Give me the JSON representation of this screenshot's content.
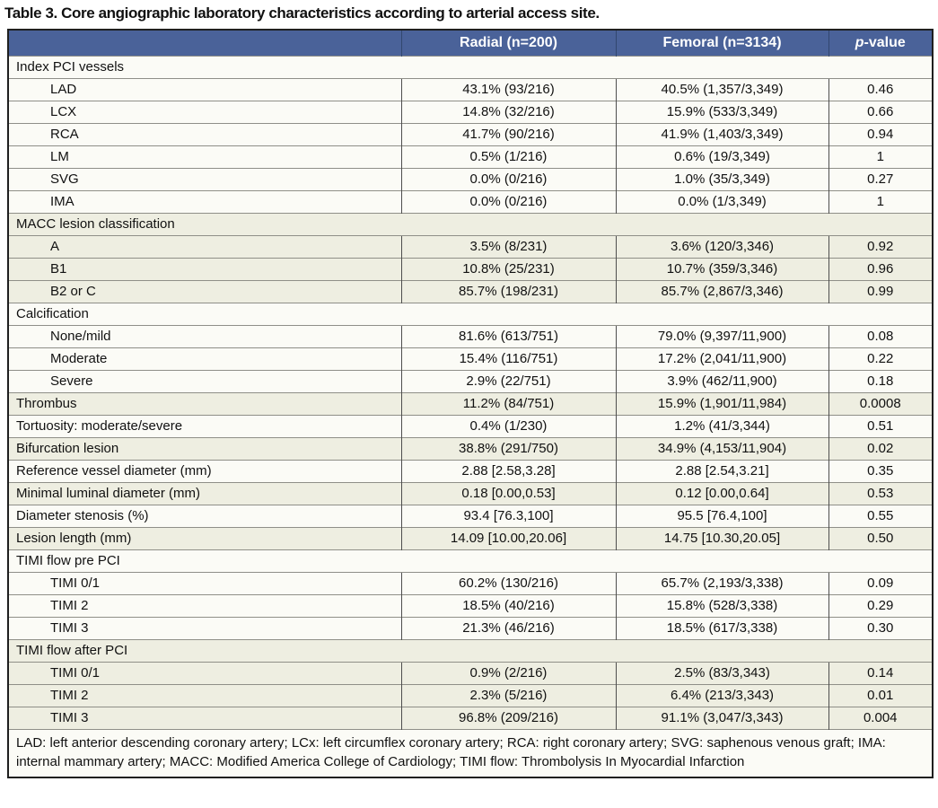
{
  "title": "Table 3. Core angiographic laboratory characteristics according to arterial access site.",
  "colors": {
    "header_bg": "#4a6299",
    "header_divider": "#32476f",
    "row_white": "#fbfbf6",
    "row_beige": "#eeeee1"
  },
  "columns": {
    "radial": "Radial (n=200)",
    "femoral": "Femoral (n=3134)",
    "pvalue_italic": "p",
    "pvalue_rest": "-value"
  },
  "rows": [
    {
      "type": "section",
      "tint": "white",
      "label": "Index PCI vessels"
    },
    {
      "type": "data",
      "tint": "white",
      "indent": true,
      "label": "LAD",
      "radial": "43.1% (93/216)",
      "femoral": "40.5% (1,357/3,349)",
      "p": "0.46"
    },
    {
      "type": "data",
      "tint": "white",
      "indent": true,
      "label": "LCX",
      "radial": "14.8% (32/216)",
      "femoral": "15.9% (533/3,349)",
      "p": "0.66"
    },
    {
      "type": "data",
      "tint": "white",
      "indent": true,
      "label": "RCA",
      "radial": "41.7% (90/216)",
      "femoral": "41.9% (1,403/3,349)",
      "p": "0.94"
    },
    {
      "type": "data",
      "tint": "white",
      "indent": true,
      "label": "LM",
      "radial": "0.5% (1/216)",
      "femoral": "0.6% (19/3,349)",
      "p": "1"
    },
    {
      "type": "data",
      "tint": "white",
      "indent": true,
      "label": "SVG",
      "radial": "0.0% (0/216)",
      "femoral": "1.0% (35/3,349)",
      "p": "0.27"
    },
    {
      "type": "data",
      "tint": "white",
      "indent": true,
      "label": "IMA",
      "radial": "0.0% (0/216)",
      "femoral": "0.0% (1/3,349)",
      "p": "1"
    },
    {
      "type": "section",
      "tint": "beige",
      "label": "MACC lesion classification"
    },
    {
      "type": "data",
      "tint": "beige",
      "indent": true,
      "label": "A",
      "radial": "3.5% (8/231)",
      "femoral": "3.6% (120/3,346)",
      "p": "0.92"
    },
    {
      "type": "data",
      "tint": "beige",
      "indent": true,
      "label": "B1",
      "radial": "10.8% (25/231)",
      "femoral": "10.7% (359/3,346)",
      "p": "0.96"
    },
    {
      "type": "data",
      "tint": "beige",
      "indent": true,
      "label": "B2 or C",
      "radial": "85.7% (198/231)",
      "femoral": "85.7% (2,867/3,346)",
      "p": "0.99"
    },
    {
      "type": "section",
      "tint": "white",
      "label": "Calcification"
    },
    {
      "type": "data",
      "tint": "white",
      "indent": true,
      "label": "None/mild",
      "radial": "81.6% (613/751)",
      "femoral": "79.0% (9,397/11,900)",
      "p": "0.08"
    },
    {
      "type": "data",
      "tint": "white",
      "indent": true,
      "label": "Moderate",
      "radial": "15.4% (116/751)",
      "femoral": "17.2% (2,041/11,900)",
      "p": "0.22"
    },
    {
      "type": "data",
      "tint": "white",
      "indent": true,
      "label": "Severe",
      "radial": "2.9% (22/751)",
      "femoral": "3.9% (462/11,900)",
      "p": "0.18"
    },
    {
      "type": "data",
      "tint": "beige",
      "indent": false,
      "label": "Thrombus",
      "radial": "11.2% (84/751)",
      "femoral": "15.9% (1,901/11,984)",
      "p": "0.0008"
    },
    {
      "type": "data",
      "tint": "white",
      "indent": false,
      "label": "Tortuosity: moderate/severe",
      "radial": "0.4% (1/230)",
      "femoral": "1.2% (41/3,344)",
      "p": "0.51"
    },
    {
      "type": "data",
      "tint": "beige",
      "indent": false,
      "label": "Bifurcation lesion",
      "radial": "38.8% (291/750)",
      "femoral": "34.9% (4,153/11,904)",
      "p": "0.02"
    },
    {
      "type": "data",
      "tint": "white",
      "indent": false,
      "label": "Reference vessel diameter (mm)",
      "radial": "2.88 [2.58,3.28]",
      "femoral": "2.88 [2.54,3.21]",
      "p": "0.35"
    },
    {
      "type": "data",
      "tint": "beige",
      "indent": false,
      "label": "Minimal luminal diameter (mm)",
      "radial": "0.18 [0.00,0.53]",
      "femoral": "0.12 [0.00,0.64]",
      "p": "0.53"
    },
    {
      "type": "data",
      "tint": "white",
      "indent": false,
      "label": "Diameter stenosis (%)",
      "radial": "93.4 [76.3,100]",
      "femoral": "95.5 [76.4,100]",
      "p": "0.55"
    },
    {
      "type": "data",
      "tint": "beige",
      "indent": false,
      "label": "Lesion length (mm)",
      "radial": "14.09 [10.00,20.06]",
      "femoral": "14.75 [10.30,20.05]",
      "p": "0.50"
    },
    {
      "type": "section",
      "tint": "white",
      "label": "TIMI flow pre PCI"
    },
    {
      "type": "data",
      "tint": "white",
      "indent": true,
      "label": "TIMI 0/1",
      "radial": "60.2% (130/216)",
      "femoral": "65.7% (2,193/3,338)",
      "p": "0.09"
    },
    {
      "type": "data",
      "tint": "white",
      "indent": true,
      "label": "TIMI 2",
      "radial": "18.5% (40/216)",
      "femoral": "15.8% (528/3,338)",
      "p": "0.29"
    },
    {
      "type": "data",
      "tint": "white",
      "indent": true,
      "label": "TIMI 3",
      "radial": "21.3% (46/216)",
      "femoral": "18.5% (617/3,338)",
      "p": "0.30"
    },
    {
      "type": "section",
      "tint": "beige",
      "label": "TIMI flow after PCI"
    },
    {
      "type": "data",
      "tint": "beige",
      "indent": true,
      "label": "TIMI 0/1",
      "radial": "0.9% (2/216)",
      "femoral": "2.5% (83/3,343)",
      "p": "0.14"
    },
    {
      "type": "data",
      "tint": "beige",
      "indent": true,
      "label": "TIMI 2",
      "radial": "2.3% (5/216)",
      "femoral": "6.4% (213/3,343)",
      "p": "0.01"
    },
    {
      "type": "data",
      "tint": "beige",
      "indent": true,
      "label": "TIMI 3",
      "radial": "96.8% (209/216)",
      "femoral": "91.1% (3,047/3,343)",
      "p": "0.004"
    }
  ],
  "footnote": "LAD: left anterior descending coronary artery; LCx: left circumflex coronary artery; RCA: right coronary artery; SVG: saphenous venous graft; IMA: internal mammary artery; MACC: Modified America College of Cardiology; TIMI flow: Thrombolysis In Myocardial Infarction"
}
